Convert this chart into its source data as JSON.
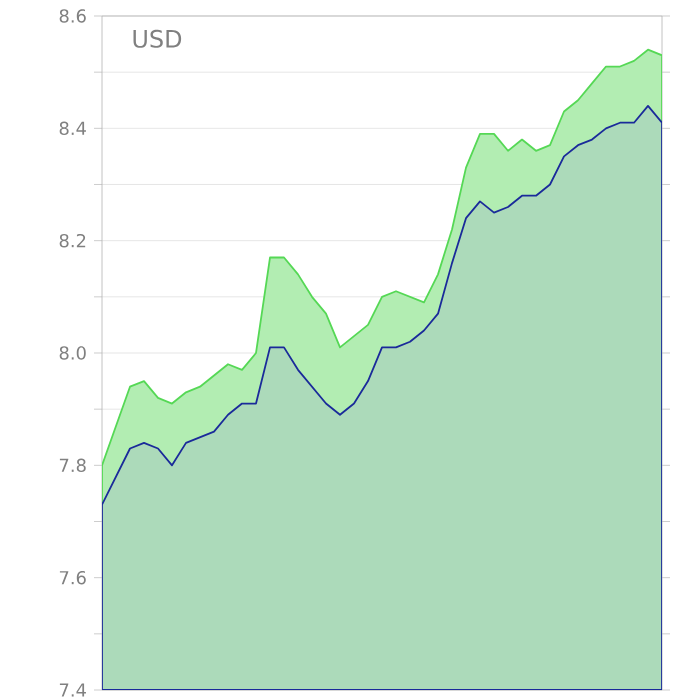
{
  "chart_data": {
    "type": "area",
    "title": "USD",
    "categories": [
      null,
      null,
      null,
      null,
      null,
      null,
      null,
      null,
      null,
      null,
      null,
      null,
      null,
      null,
      null,
      null,
      null,
      null,
      null,
      null,
      null,
      null,
      null,
      null,
      null,
      null,
      null,
      null,
      null,
      null,
      null,
      null,
      null,
      null,
      null,
      null,
      null,
      null,
      null,
      null,
      null
    ],
    "series": [
      {
        "color": "#55d855",
        "values": [
          7.8,
          7.87,
          7.94,
          7.95,
          7.92,
          7.91,
          7.93,
          7.94,
          7.96,
          7.98,
          7.97,
          8.0,
          8.17,
          8.17,
          8.14,
          8.1,
          8.07,
          8.01,
          8.03,
          8.05,
          8.1,
          8.11,
          8.1,
          8.09,
          8.14,
          8.22,
          8.33,
          8.39,
          8.39,
          8.36,
          8.38,
          8.36,
          8.37,
          8.43,
          8.45,
          8.48,
          8.51,
          8.51,
          8.52,
          8.54,
          8.53
        ]
      },
      {
        "color": "#1a2a9a",
        "values": [
          7.73,
          7.78,
          7.83,
          7.84,
          7.83,
          7.8,
          7.84,
          7.85,
          7.86,
          7.89,
          7.91,
          7.91,
          8.01,
          8.01,
          7.97,
          7.94,
          7.91,
          7.89,
          7.91,
          7.95,
          8.01,
          8.01,
          8.02,
          8.04,
          8.07,
          8.16,
          8.24,
          8.27,
          8.25,
          8.26,
          8.28,
          8.28,
          8.3,
          8.35,
          8.37,
          8.38,
          8.4,
          8.41,
          8.41,
          8.44,
          8.41
        ]
      }
    ],
    "ylim": [
      7.4,
      8.6
    ],
    "yticks": [
      7.4,
      7.6,
      7.8,
      {
        "value": 8,
        "label": "8.0"
      },
      8.2,
      8.4,
      8.6
    ],
    "grid": "y"
  }
}
